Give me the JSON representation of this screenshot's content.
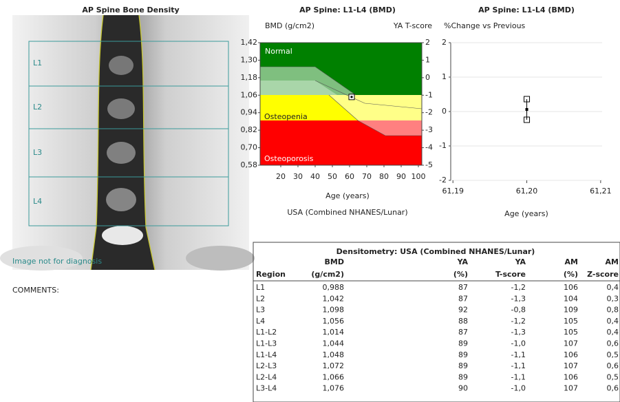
{
  "image": {
    "title": "AP Spine Bone Density",
    "labels": [
      "L1",
      "L2",
      "L3",
      "L4"
    ],
    "note": "Image not for diagnosis"
  },
  "comments": "COMMENTS:",
  "chart_data": [
    {
      "type": "scatter",
      "title": "AP Spine: L1-L4 (BMD)",
      "y_label": "BMD (g/cm2)",
      "y2_label": "YA T-score",
      "x_label": "Age (years)",
      "subtitle": "USA (Combined NHANES/Lunar)",
      "zones": [
        "Normal",
        "Osteopenia",
        "Osteoporosis"
      ],
      "x": [
        61.2
      ],
      "values": [
        1.048
      ],
      "xlim": [
        8,
        102
      ],
      "xticks": [
        20,
        30,
        40,
        50,
        60,
        70,
        80,
        90,
        100
      ],
      "ylim": [
        0.58,
        1.42
      ],
      "yticks": [
        {
          "value": 1.42,
          "label": "1,42"
        },
        {
          "value": 1.3,
          "label": "1,30"
        },
        {
          "value": 1.18,
          "label": "1,18"
        },
        {
          "value": 1.06,
          "label": "1,06"
        },
        {
          "value": 0.94,
          "label": "0,94"
        },
        {
          "value": 0.82,
          "label": "0,82"
        },
        {
          "value": 0.7,
          "label": "0,70"
        },
        {
          "value": 0.58,
          "label": "0,58"
        }
      ],
      "y2lim": [
        -5,
        2
      ],
      "y2ticks": [
        2,
        1,
        0,
        -1,
        -2,
        -3,
        -4,
        -5
      ]
    },
    {
      "type": "errorbar",
      "title": "AP Spine: L1-L4  (BMD)",
      "y_label": "%Change vs Previous",
      "x_label": "Age (years)",
      "x": [
        61.2
      ],
      "values": [
        0.06
      ],
      "errors": [
        0.3
      ],
      "xlim": [
        61.1897,
        61.2102
      ],
      "xticks": [
        {
          "value": 61.19,
          "label": "61,19"
        },
        {
          "value": 61.2,
          "label": "61,20"
        },
        {
          "value": 61.21,
          "label": "61,21"
        }
      ],
      "ylim": [
        -2,
        2
      ],
      "yticks": [
        2,
        1,
        0,
        -1,
        -2
      ],
      "grid": true
    }
  ],
  "table": {
    "title": "Densitometry: USA (Combined NHANES/Lunar)",
    "header_top": [
      "",
      "BMD",
      "YA",
      "YA",
      "AM",
      "AM"
    ],
    "header": [
      "Region",
      "(g/cm2)",
      "(%)",
      "T-score",
      "(%)",
      "Z-score"
    ],
    "rows": [
      [
        "L1",
        "0,988",
        "87",
        "-1,2",
        "106",
        "0,4"
      ],
      [
        "L2",
        "1,042",
        "87",
        "-1,3",
        "104",
        "0,3"
      ],
      [
        "L3",
        "1,098",
        "92",
        "-0,8",
        "109",
        "0,8"
      ],
      [
        "L4",
        "1,056",
        "88",
        "-1,2",
        "105",
        "0,4"
      ],
      [
        "L1-L2",
        "1,014",
        "87",
        "-1,3",
        "105",
        "0,4"
      ],
      [
        "L1-L3",
        "1,044",
        "89",
        "-1,0",
        "107",
        "0,6"
      ],
      [
        "L1-L4",
        "1,048",
        "89",
        "-1,1",
        "106",
        "0,5"
      ],
      [
        "L2-L3",
        "1,072",
        "89",
        "-1,1",
        "107",
        "0,6"
      ],
      [
        "L2-L4",
        "1,066",
        "89",
        "-1,1",
        "106",
        "0,5"
      ],
      [
        "L3-L4",
        "1,076",
        "90",
        "-1,0",
        "107",
        "0,6"
      ]
    ]
  }
}
